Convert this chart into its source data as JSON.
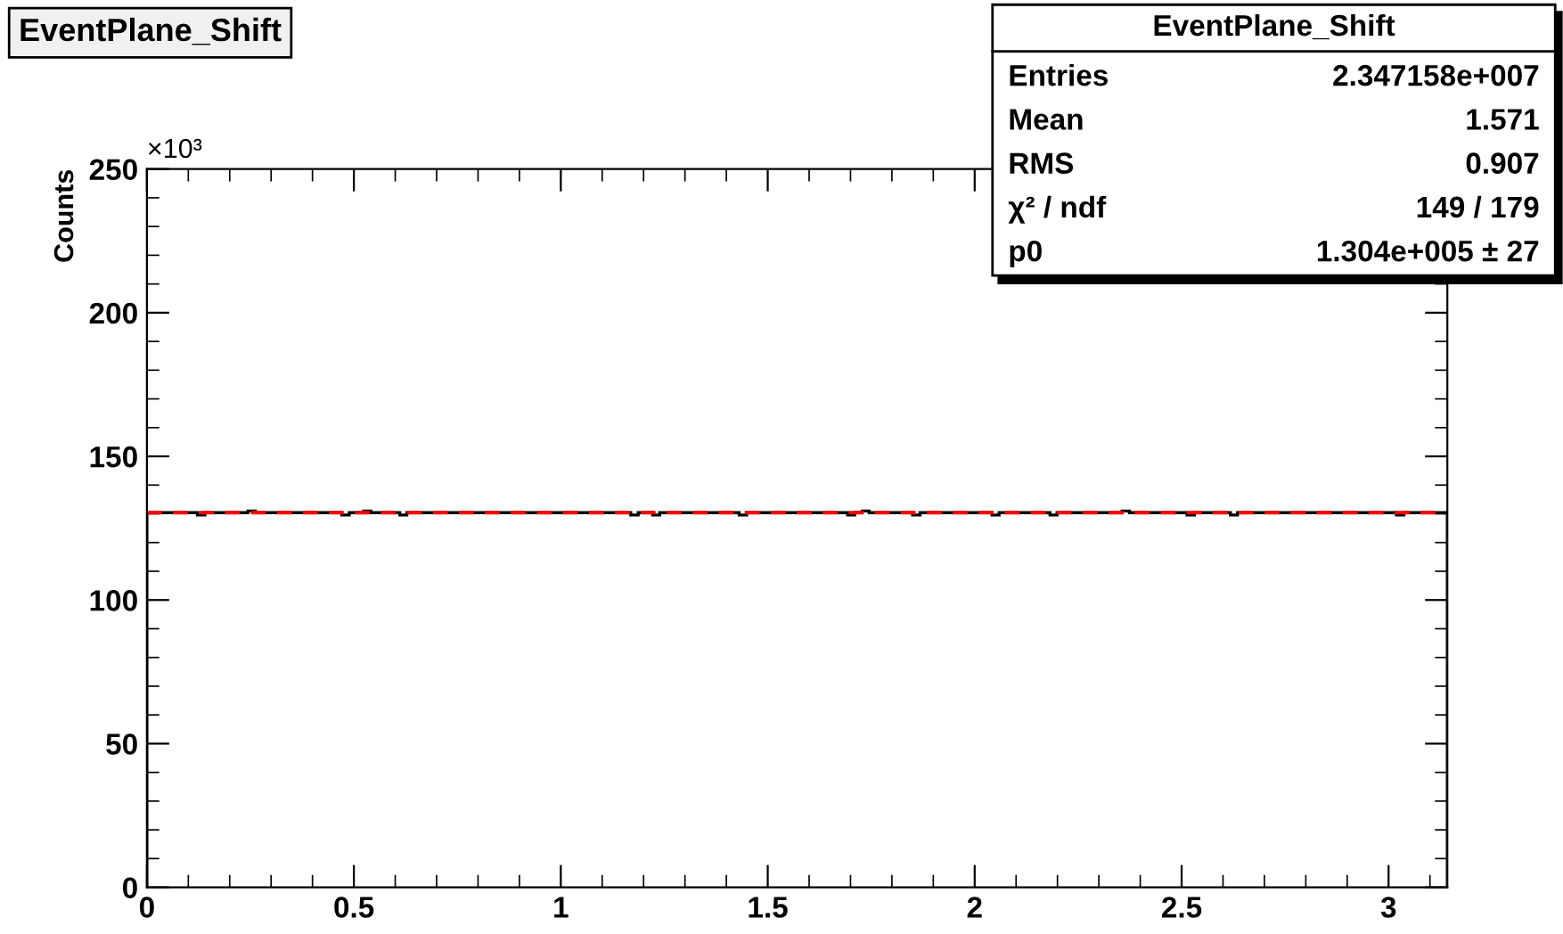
{
  "chart_data": {
    "type": "histogram",
    "title": "EventPlane_Shift",
    "ylabel": "Counts",
    "bins": [
      0,
      0.017,
      0.035,
      0.052,
      0.07,
      0.087,
      0.105,
      0.122,
      0.14,
      0.157,
      0.175,
      0.192,
      0.209,
      0.227,
      0.244,
      0.262,
      0.279,
      0.297,
      0.314,
      0.332,
      0.349,
      0.367,
      0.384,
      0.401,
      0.419,
      0.436,
      0.454,
      0.471,
      0.489,
      0.506,
      0.524,
      0.541,
      0.559,
      0.576,
      0.593,
      0.611,
      0.628,
      0.646,
      0.663,
      0.681,
      0.698,
      0.716,
      0.733,
      0.75,
      0.768,
      0.785,
      0.803,
      0.82,
      0.838,
      0.855,
      0.873,
      0.89,
      0.908,
      0.925,
      0.942,
      0.96,
      0.977,
      0.995,
      1.012,
      1.03,
      1.047,
      1.065,
      1.082,
      1.1,
      1.117,
      1.134,
      1.152,
      1.169,
      1.187,
      1.204,
      1.222,
      1.239,
      1.257,
      1.274,
      1.292,
      1.309,
      1.326,
      1.344,
      1.361,
      1.379,
      1.396,
      1.414,
      1.431,
      1.449,
      1.466,
      1.484,
      1.501,
      1.518,
      1.536,
      1.553,
      1.571,
      1.588,
      1.606,
      1.623,
      1.641,
      1.658,
      1.676,
      1.693,
      1.71,
      1.728,
      1.745,
      1.763,
      1.78,
      1.798,
      1.815,
      1.833,
      1.85,
      1.868,
      1.885,
      1.902,
      1.92,
      1.937,
      1.955,
      1.972,
      1.99,
      2.007,
      2.025,
      2.042,
      2.059,
      2.077,
      2.094,
      2.112,
      2.129,
      2.147,
      2.164,
      2.182,
      2.199,
      2.217,
      2.234,
      2.251,
      2.269,
      2.286,
      2.304,
      2.321,
      2.339,
      2.356,
      2.374,
      2.391,
      2.409,
      2.426,
      2.443,
      2.461,
      2.478,
      2.496,
      2.513,
      2.531,
      2.548,
      2.566,
      2.583,
      2.601,
      2.618,
      2.635,
      2.653,
      2.67,
      2.688,
      2.705,
      2.723,
      2.74,
      2.758,
      2.775,
      2.793,
      2.81,
      2.827,
      2.845,
      2.862,
      2.88,
      2.897,
      2.915,
      2.932,
      2.95,
      2.967,
      2.985,
      3.002,
      3.019,
      3.037,
      3.054,
      3.072,
      3.089,
      3.107,
      3.124,
      3.142
    ],
    "series": [
      {
        "color": "#000000",
        "values": [
          130.4,
          130.4,
          130.4,
          130.4,
          130.4,
          130.4,
          130.4,
          129.6,
          130.4,
          130.4,
          130.4,
          130.4,
          130.4,
          130.4,
          131,
          130.4,
          130.4,
          130.4,
          130.4,
          130.4,
          130.4,
          130.4,
          130.4,
          130.4,
          130.4,
          130.4,
          130.4,
          129.6,
          130.4,
          130.4,
          131,
          130.4,
          130.4,
          130.4,
          130.4,
          129.6,
          130.4,
          130.4,
          130.4,
          130.4,
          130.4,
          130.4,
          130.4,
          130.4,
          130.4,
          130.4,
          130.4,
          130.4,
          130.4,
          130.4,
          130.4,
          130.4,
          130.4,
          130.4,
          130.4,
          130.4,
          130.4,
          130.4,
          130.4,
          130.4,
          130.4,
          130.4,
          130.4,
          130.4,
          130.4,
          130.4,
          130.4,
          129.6,
          130.4,
          130.4,
          129.6,
          130.4,
          130.4,
          130.4,
          130.4,
          130.4,
          130.4,
          130.4,
          130.4,
          130.4,
          130.4,
          130.4,
          129.6,
          130.4,
          130.4,
          130.4,
          130.4,
          130.4,
          130.4,
          130.4,
          130.4,
          130.4,
          130.4,
          130.4,
          130.4,
          130.4,
          130.4,
          129.6,
          130.4,
          131,
          130.4,
          130.4,
          130.4,
          130.4,
          130.4,
          130.4,
          129.6,
          130.4,
          130.4,
          130.4,
          130.4,
          130.4,
          130.4,
          130.4,
          130.4,
          130.4,
          130.4,
          129.6,
          130.4,
          130.4,
          130.4,
          130.4,
          130.4,
          130.4,
          130.4,
          129.6,
          130.4,
          130.4,
          130.4,
          130.4,
          130.4,
          130.4,
          130.4,
          130.4,
          130.4,
          131,
          130.4,
          130.4,
          130.4,
          130.4,
          130.4,
          130.4,
          130.4,
          130.4,
          129.6,
          130.4,
          130.4,
          130.4,
          130.4,
          130.4,
          129.6,
          130.4,
          130.4,
          130.4,
          130.4,
          130.4,
          130.4,
          130.4,
          130.4,
          130.4,
          130.4,
          130.4,
          130.4,
          130.4,
          130.4,
          130.4,
          130.4,
          130.4,
          130.4,
          130.4,
          130.4,
          130.4,
          130.4,
          129.6,
          130.4,
          130.4,
          130.4,
          130.4,
          130.4,
          130.4
        ]
      },
      {
        "type": "line",
        "x": [
          0,
          3.142
        ],
        "values": [
          130.4,
          130.4
        ],
        "color": "#ff0000",
        "line_style": "dashed"
      }
    ],
    "xlim": [
      0,
      3.142
    ],
    "xticks": [
      0,
      0.5,
      1,
      1.5,
      2,
      2.5,
      3
    ],
    "ylim": [
      0,
      250
    ],
    "yticks": [
      0,
      50,
      100,
      150,
      200,
      250
    ],
    "grid": false,
    "legend": false,
    "annotations": [
      "EventPlane_Shift",
      "Entries",
      "2.347158e+007",
      "Mean",
      "1.571",
      "RMS",
      "0.907",
      "χ² / ndf",
      "149 / 179",
      "p0",
      "1.304e+005 ± 27",
      "×10³"
    ]
  }
}
